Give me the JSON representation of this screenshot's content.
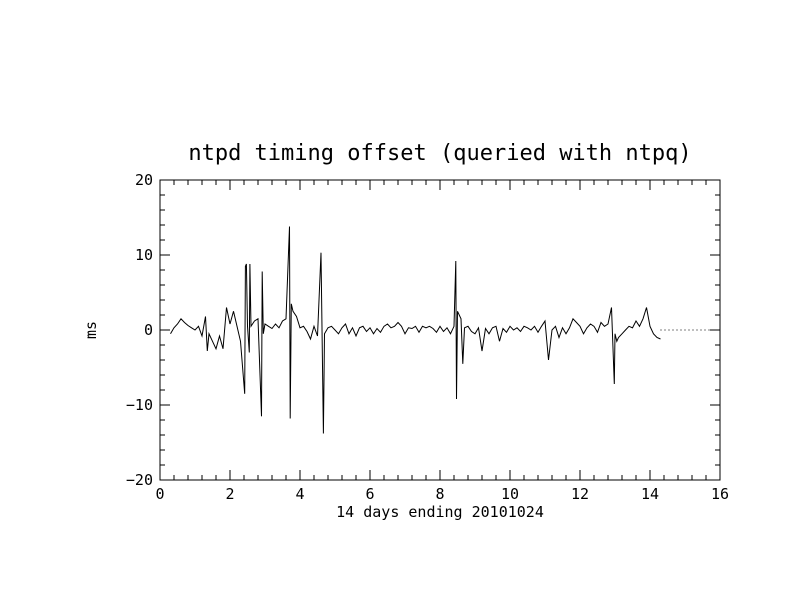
{
  "chart_data": {
    "type": "line",
    "title": "ntpd timing offset (queried with ntpq)",
    "xlabel": "14 days ending 20101024",
    "ylabel": "ms",
    "xlim": [
      0,
      16
    ],
    "ylim": [
      -20,
      20
    ],
    "x_ticks": [
      0,
      2,
      4,
      6,
      8,
      10,
      12,
      14,
      16
    ],
    "y_ticks": [
      -20,
      -10,
      0,
      10,
      20
    ],
    "x_tick_labels": [
      "0",
      "2",
      "4",
      "6",
      "8",
      "10",
      "12",
      "14",
      "16"
    ],
    "y_tick_labels": [
      "−20",
      "−10",
      "0",
      "10",
      "20"
    ],
    "grid": false,
    "reference_line": {
      "y": 0,
      "style": "dotted",
      "x_range": [
        14.3,
        16
      ]
    },
    "series": [
      {
        "color": "#000000",
        "x": [
          0.3,
          0.4,
          0.5,
          0.6,
          0.7,
          0.8,
          0.9,
          1.0,
          1.1,
          1.2,
          1.3,
          1.35,
          1.4,
          1.5,
          1.6,
          1.7,
          1.8,
          1.9,
          2.0,
          2.1,
          2.2,
          2.3,
          2.42,
          2.44,
          2.47,
          2.5,
          2.55,
          2.57,
          2.6,
          2.7,
          2.8,
          2.9,
          2.92,
          2.95,
          3.0,
          3.1,
          3.2,
          3.3,
          3.4,
          3.5,
          3.6,
          3.7,
          3.72,
          3.75,
          3.8,
          3.9,
          4.0,
          4.1,
          4.2,
          4.3,
          4.4,
          4.5,
          4.6,
          4.67,
          4.7,
          4.8,
          4.9,
          5.0,
          5.1,
          5.2,
          5.3,
          5.4,
          5.5,
          5.6,
          5.7,
          5.8,
          5.9,
          6.0,
          6.1,
          6.2,
          6.3,
          6.4,
          6.5,
          6.6,
          6.7,
          6.8,
          6.9,
          7.0,
          7.1,
          7.2,
          7.3,
          7.4,
          7.5,
          7.6,
          7.7,
          7.8,
          7.9,
          8.0,
          8.1,
          8.2,
          8.3,
          8.4,
          8.45,
          8.47,
          8.5,
          8.6,
          8.65,
          8.7,
          8.8,
          8.9,
          9.0,
          9.1,
          9.2,
          9.3,
          9.4,
          9.5,
          9.6,
          9.7,
          9.8,
          9.9,
          10.0,
          10.1,
          10.2,
          10.3,
          10.4,
          10.5,
          10.6,
          10.7,
          10.8,
          10.9,
          11.0,
          11.1,
          11.2,
          11.3,
          11.4,
          11.5,
          11.6,
          11.7,
          11.8,
          11.9,
          12.0,
          12.1,
          12.2,
          12.3,
          12.4,
          12.5,
          12.6,
          12.7,
          12.8,
          12.9,
          12.98,
          13.0,
          13.05,
          13.1,
          13.2,
          13.3,
          13.4,
          13.5,
          13.6,
          13.7,
          13.8,
          13.9,
          14.0,
          14.1,
          14.2,
          14.3
        ],
        "y": [
          -0.5,
          0.3,
          0.8,
          1.5,
          1.0,
          0.6,
          0.3,
          0.0,
          0.5,
          -0.8,
          1.8,
          -2.8,
          -0.5,
          -1.5,
          -2.5,
          -0.8,
          -2.5,
          3.0,
          0.8,
          2.5,
          0.5,
          -1.5,
          -8.5,
          8.5,
          8.8,
          0.5,
          -3.0,
          8.8,
          0.5,
          1.2,
          1.5,
          -11.5,
          7.8,
          -0.5,
          0.8,
          0.5,
          0.2,
          0.8,
          0.3,
          1.2,
          1.5,
          13.8,
          -11.8,
          3.5,
          2.5,
          1.8,
          0.3,
          0.5,
          -0.2,
          -1.2,
          0.5,
          -0.8,
          10.3,
          -13.8,
          -0.5,
          0.3,
          0.5,
          0.0,
          -0.5,
          0.3,
          0.8,
          -0.5,
          0.3,
          -0.8,
          0.3,
          0.5,
          -0.2,
          0.3,
          -0.5,
          0.2,
          -0.3,
          0.5,
          0.8,
          0.3,
          0.5,
          1.0,
          0.5,
          -0.5,
          0.3,
          0.2,
          0.5,
          -0.3,
          0.5,
          0.3,
          0.5,
          0.2,
          -0.3,
          0.5,
          -0.2,
          0.3,
          -0.5,
          0.5,
          9.2,
          -9.2,
          2.5,
          1.5,
          -4.5,
          0.3,
          0.5,
          -0.2,
          -0.5,
          0.3,
          -2.8,
          0.2,
          -0.5,
          0.3,
          0.5,
          -1.5,
          0.2,
          -0.3,
          0.5,
          0.0,
          0.3,
          -0.2,
          0.5,
          0.3,
          0.0,
          0.5,
          -0.3,
          0.5,
          1.2,
          -4.0,
          0.0,
          0.5,
          -1.0,
          0.3,
          -0.5,
          0.3,
          1.5,
          1.0,
          0.5,
          -0.5,
          0.3,
          0.8,
          0.5,
          -0.3,
          1.0,
          0.5,
          0.8,
          3.0,
          -7.2,
          -0.5,
          -1.5,
          -1.0,
          -0.5,
          0.0,
          0.5,
          0.3,
          1.2,
          0.5,
          1.5,
          3.0,
          0.5,
          -0.5,
          -1.0,
          -1.2
        ]
      }
    ]
  }
}
